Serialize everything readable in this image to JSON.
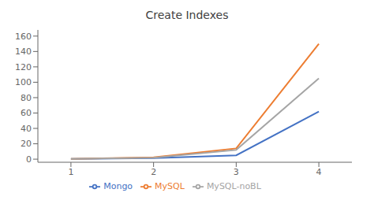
{
  "chart_data": {
    "type": "line",
    "title": "Create Indexes",
    "x": [
      1,
      2,
      3,
      4
    ],
    "series": [
      {
        "name": "Mongo",
        "color": "#4472C4",
        "values": [
          0.3,
          1.5,
          5,
          62
        ]
      },
      {
        "name": "MySQL",
        "color": "#ED7D31",
        "values": [
          0.3,
          2.5,
          14,
          150
        ]
      },
      {
        "name": "MySQL-noBL",
        "color": "#A5A5A5",
        "values": [
          0.3,
          2.0,
          12,
          105
        ]
      }
    ],
    "xlim": [
      0.6,
      4.4
    ],
    "xticks": [
      1,
      2,
      3,
      4
    ],
    "ylim": [
      -4,
      168
    ],
    "yticks": [
      0,
      20,
      40,
      60,
      80,
      100,
      120,
      140,
      160
    ],
    "grid": false,
    "legend": "bottom"
  }
}
